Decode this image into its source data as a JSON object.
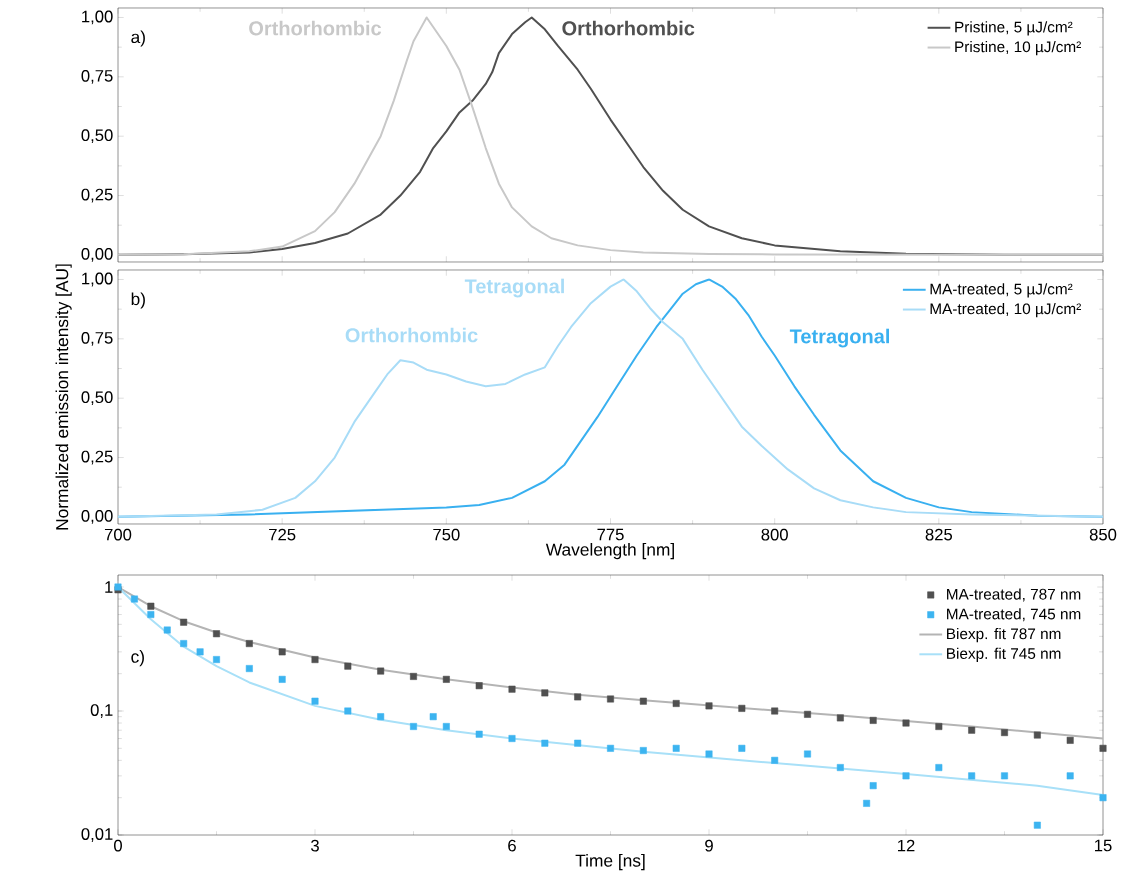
{
  "chart_data": [
    {
      "type": "line",
      "xlim": [
        700,
        850
      ],
      "ylim": [
        -0.03,
        1.04
      ],
      "tick_labels": "y",
      "xticks": [
        700,
        725,
        750,
        775,
        800,
        825,
        850
      ],
      "yticks": [
        {
          "value": 0,
          "label": "0,00"
        },
        {
          "value": 0.25,
          "label": "0,25"
        },
        {
          "value": 0.5,
          "label": "0,50"
        },
        {
          "value": 0.75,
          "label": "0,75"
        },
        {
          "value": 1,
          "label": "1,00"
        }
      ],
      "legend": "top right",
      "annotations": [
        "a)",
        "Orthorhombic",
        "Orthorhombic"
      ],
      "x": [
        700,
        710,
        720,
        725,
        730,
        735,
        740,
        743,
        746,
        748,
        750,
        752,
        754,
        756,
        757,
        758,
        760,
        762,
        763,
        765,
        767,
        770,
        772,
        775,
        778,
        780,
        783,
        786,
        790,
        795,
        800,
        810,
        820,
        835,
        850
      ],
      "series": [
        {
          "name": "Pristine, 5 µJ/cm²",
          "color": "#505050",
          "values": [
            0,
            0.003,
            0.01,
            0.025,
            0.05,
            0.09,
            0.17,
            0.25,
            0.35,
            0.45,
            0.52,
            0.6,
            0.65,
            0.72,
            0.77,
            0.85,
            0.93,
            0.98,
            1.0,
            0.95,
            0.88,
            0.78,
            0.7,
            0.57,
            0.45,
            0.37,
            0.27,
            0.19,
            0.12,
            0.07,
            0.04,
            0.015,
            0.005,
            0.001,
            0
          ]
        },
        {
          "name": "Pristine, 10 µJ/cm²",
          "color": "#c8c8c8",
          "x": [
            700,
            710,
            720,
            725,
            730,
            733,
            736,
            738,
            740,
            742,
            744,
            745,
            746,
            747,
            748,
            750,
            752,
            754,
            756,
            758,
            760,
            763,
            766,
            770,
            775,
            780,
            790,
            800,
            850
          ],
          "values": [
            0,
            0.003,
            0.015,
            0.035,
            0.1,
            0.18,
            0.3,
            0.4,
            0.5,
            0.65,
            0.82,
            0.9,
            0.95,
            1.0,
            0.96,
            0.88,
            0.78,
            0.62,
            0.45,
            0.3,
            0.2,
            0.12,
            0.07,
            0.04,
            0.02,
            0.01,
            0.004,
            0.002,
            0
          ]
        }
      ]
    },
    {
      "type": "line",
      "xlim": [
        700,
        850
      ],
      "ylim": [
        -0.03,
        1.04
      ],
      "xlabel": "Wavelength [nm]",
      "ylabel": "Normalized emission intensity [AU]",
      "xticks": [
        700,
        725,
        750,
        775,
        800,
        825,
        850
      ],
      "yticks": [
        {
          "value": 0,
          "label": "0,00"
        },
        {
          "value": 0.25,
          "label": "0,25"
        },
        {
          "value": 0.5,
          "label": "0,50"
        },
        {
          "value": 0.75,
          "label": "0,75"
        },
        {
          "value": 1,
          "label": "1,00"
        }
      ],
      "legend": "top right",
      "annotations": [
        "b)",
        "Tetragonal",
        "Tetragonal",
        "Orthorhombic"
      ],
      "series": [
        {
          "name": "MA-treated, 5 µJ/cm²",
          "color": "#39b0f0",
          "x": [
            700,
            720,
            730,
            740,
            750,
            755,
            760,
            765,
            768,
            770,
            773,
            776,
            779,
            782,
            784,
            786,
            788,
            790,
            792,
            794,
            796,
            798,
            800,
            803,
            806,
            810,
            815,
            820,
            825,
            830,
            840,
            850
          ],
          "values": [
            0,
            0.01,
            0.02,
            0.03,
            0.04,
            0.05,
            0.08,
            0.15,
            0.22,
            0.3,
            0.42,
            0.55,
            0.68,
            0.8,
            0.87,
            0.94,
            0.98,
            1.0,
            0.97,
            0.92,
            0.85,
            0.76,
            0.68,
            0.55,
            0.43,
            0.28,
            0.15,
            0.08,
            0.04,
            0.02,
            0.005,
            0
          ]
        },
        {
          "name": "MA-treated, 10 µJ/cm²",
          "color": "#a8dcf7",
          "x": [
            700,
            715,
            722,
            727,
            730,
            733,
            736,
            739,
            741,
            743,
            745,
            747,
            750,
            753,
            756,
            759,
            762,
            765,
            767,
            769,
            772,
            775,
            777,
            779,
            781,
            783,
            786,
            789,
            792,
            795,
            798,
            802,
            806,
            810,
            815,
            820,
            830,
            850
          ],
          "values": [
            0,
            0.01,
            0.03,
            0.08,
            0.15,
            0.25,
            0.4,
            0.52,
            0.6,
            0.66,
            0.65,
            0.62,
            0.6,
            0.57,
            0.55,
            0.56,
            0.6,
            0.63,
            0.72,
            0.8,
            0.9,
            0.97,
            1.0,
            0.95,
            0.88,
            0.82,
            0.75,
            0.62,
            0.5,
            0.38,
            0.3,
            0.2,
            0.12,
            0.07,
            0.04,
            0.02,
            0.01,
            0
          ]
        }
      ]
    },
    {
      "type": "scatter",
      "log": "y",
      "xlim": [
        0,
        15
      ],
      "ylim": [
        0.01,
        1.25
      ],
      "xlabel": "Time [ns]",
      "xticks": [
        0,
        3,
        6,
        9,
        12,
        15
      ],
      "yticks": [
        {
          "value": 0.01,
          "label": "0,01"
        },
        {
          "value": 0.1,
          "label": "0,1"
        },
        {
          "value": 1,
          "label": "1"
        }
      ],
      "legend": "top right",
      "annotations": [
        "c)"
      ],
      "series": [
        {
          "name": "MA-treated, 787 nm",
          "color": "#505050",
          "marker": "square",
          "x": [
            0,
            0.5,
            1,
            1.5,
            2,
            2.5,
            3,
            3.5,
            4,
            4.5,
            5,
            5.5,
            6,
            6.5,
            7,
            7.5,
            8,
            8.5,
            9,
            9.5,
            10,
            10.5,
            11,
            11.5,
            12,
            12.5,
            13,
            13.5,
            14,
            14.5,
            15
          ],
          "values": [
            0.95,
            0.7,
            0.52,
            0.42,
            0.35,
            0.3,
            0.26,
            0.23,
            0.21,
            0.19,
            0.18,
            0.16,
            0.15,
            0.14,
            0.13,
            0.125,
            0.12,
            0.115,
            0.11,
            0.105,
            0.1,
            0.094,
            0.088,
            0.084,
            0.08,
            0.075,
            0.07,
            0.067,
            0.064,
            0.058,
            0.05
          ]
        },
        {
          "name": "MA-treated, 745 nm",
          "color": "#3cb4f0",
          "marker": "square",
          "x": [
            0,
            0.25,
            0.5,
            0.75,
            1,
            1.25,
            1.5,
            2,
            2.5,
            3,
            3.5,
            4,
            4.5,
            4.8,
            5,
            5.5,
            6,
            6.5,
            7,
            7.5,
            8,
            8.5,
            9,
            9.5,
            10,
            10.5,
            11,
            11.4,
            11.5,
            12,
            12.5,
            13,
            13.5,
            14,
            14.5,
            15
          ],
          "values": [
            1.0,
            0.8,
            0.6,
            0.45,
            0.35,
            0.3,
            0.26,
            0.22,
            0.18,
            0.12,
            0.1,
            0.09,
            0.075,
            0.09,
            0.075,
            0.065,
            0.06,
            0.055,
            0.055,
            0.05,
            0.048,
            0.05,
            0.045,
            0.05,
            0.04,
            0.045,
            0.035,
            0.018,
            0.025,
            0.03,
            0.035,
            0.03,
            0.03,
            0.012,
            0.03,
            0.02
          ]
        },
        {
          "name": "Biexp. fit 787 nm",
          "type": "line",
          "color": "#b4b4b4",
          "x": [
            0,
            0.5,
            1,
            1.5,
            2,
            3,
            4,
            5,
            6,
            7,
            8,
            9,
            10,
            11,
            12,
            13,
            14,
            15
          ],
          "values": [
            1.0,
            0.7,
            0.53,
            0.43,
            0.36,
            0.27,
            0.215,
            0.18,
            0.155,
            0.135,
            0.122,
            0.111,
            0.101,
            0.092,
            0.083,
            0.075,
            0.067,
            0.06
          ]
        },
        {
          "name": "Biexp. fit 745 nm",
          "type": "line",
          "color": "#a8e0f8",
          "x": [
            0,
            0.5,
            1,
            1.5,
            2,
            3,
            4,
            5,
            6,
            8,
            10,
            12,
            14,
            15
          ],
          "values": [
            1.0,
            0.55,
            0.33,
            0.23,
            0.17,
            0.11,
            0.085,
            0.07,
            0.06,
            0.047,
            0.038,
            0.031,
            0.025,
            0.021
          ]
        }
      ]
    }
  ]
}
